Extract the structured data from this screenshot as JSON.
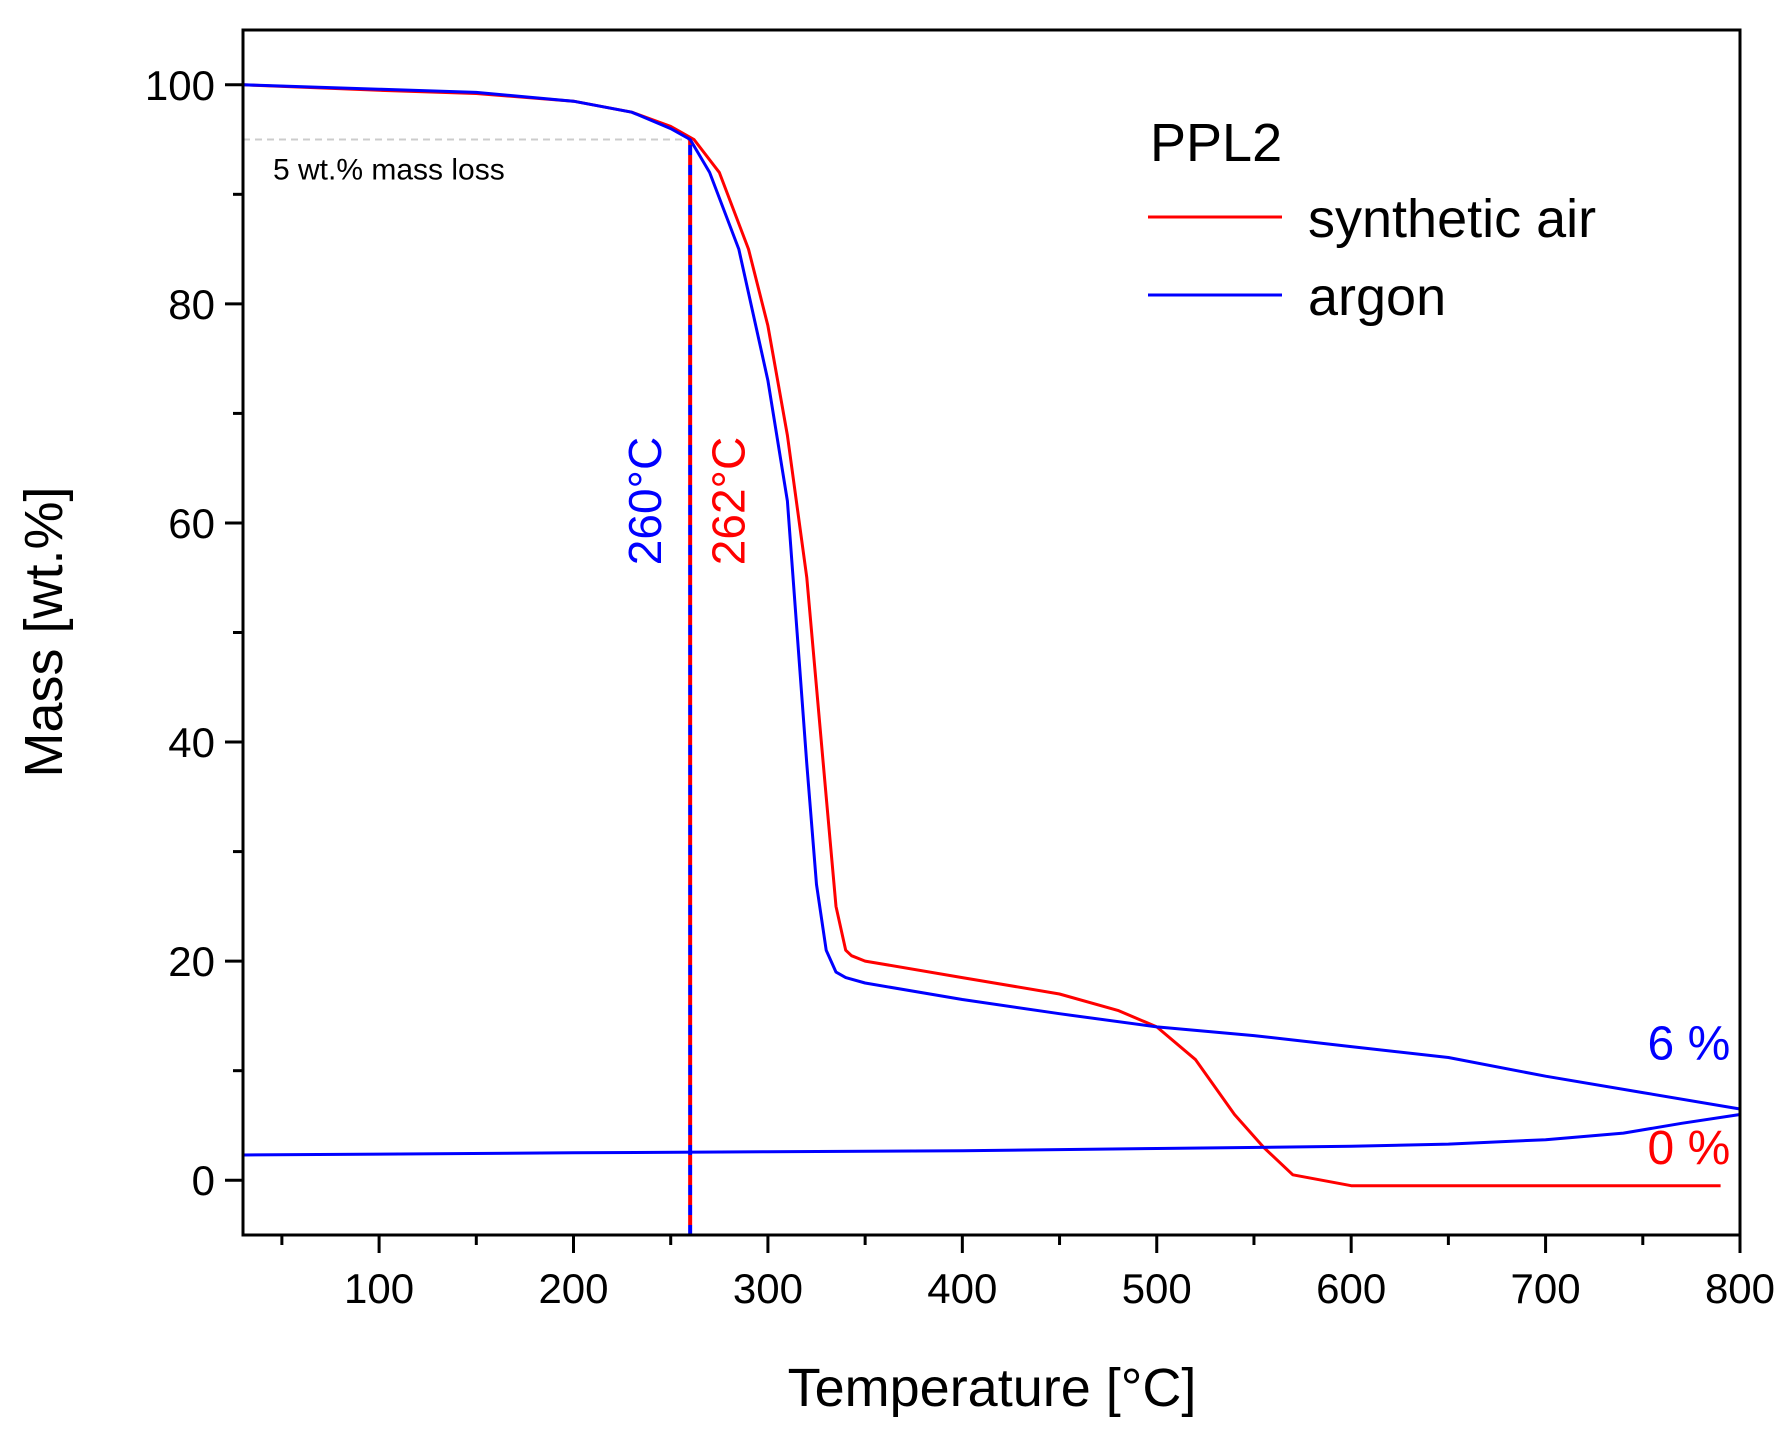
{
  "chart_data": {
    "type": "line",
    "xlabel": "Temperature [°C]",
    "ylabel": "Mass [wt.%]",
    "xlim": [
      30,
      800
    ],
    "ylim": [
      -5,
      105
    ],
    "xticks": [
      100,
      200,
      300,
      400,
      500,
      600,
      700,
      800
    ],
    "yticks": [
      0,
      20,
      40,
      60,
      80,
      100
    ],
    "xtick_labels": [
      "100",
      "200",
      "300",
      "400",
      "500",
      "600",
      "700",
      "800"
    ],
    "ytick_labels": [
      "0",
      "20",
      "40",
      "60",
      "80",
      "100"
    ],
    "legend": {
      "title": "PPL2",
      "position": "top-right",
      "entries": [
        "synthetic air",
        "argon"
      ]
    },
    "colors": {
      "synthetic_air": "#ff0000",
      "argon": "#0000ff",
      "reference": "#cccccc"
    },
    "series": [
      {
        "name": "synthetic air",
        "color": "#ff0000",
        "x": [
          30,
          100,
          150,
          200,
          230,
          250,
          262,
          275,
          290,
          300,
          310,
          320,
          325,
          330,
          335,
          340,
          343,
          350,
          400,
          450,
          480,
          500,
          520,
          540,
          555,
          570,
          600,
          640,
          700,
          790
        ],
        "y": [
          100,
          99.5,
          99.2,
          98.5,
          97.5,
          96.2,
          95,
          92,
          85,
          78,
          68,
          55,
          45,
          35,
          25,
          21,
          20.5,
          20,
          18.5,
          17,
          15.5,
          14,
          11,
          6,
          3,
          0.5,
          -0.5,
          -0.5,
          -0.5,
          -0.5
        ]
      },
      {
        "name": "argon",
        "color": "#0000ff",
        "x": [
          30,
          100,
          150,
          200,
          230,
          250,
          260,
          270,
          285,
          300,
          310,
          315,
          320,
          325,
          330,
          335,
          340,
          350,
          400,
          450,
          500,
          550,
          600,
          650,
          700,
          750,
          800
        ],
        "y": [
          100,
          99.6,
          99.3,
          98.5,
          97.5,
          96,
          95,
          92,
          85,
          73,
          62,
          50,
          38,
          27,
          21,
          19,
          18.5,
          18,
          16.5,
          15.2,
          14,
          13.2,
          12.2,
          11.2,
          9.5,
          8,
          6.5
        ]
      },
      {
        "name": "argon baseline",
        "color": "#0000ff",
        "x": [
          30,
          200,
          300,
          400,
          500,
          600,
          650,
          700,
          740,
          770,
          800
        ],
        "y": [
          2.3,
          2.5,
          2.6,
          2.7,
          2.9,
          3.1,
          3.3,
          3.7,
          4.3,
          5.2,
          6
        ]
      }
    ],
    "reference_lines": [
      {
        "type": "horizontal",
        "y": 95,
        "x_from": 30,
        "x_to": 260,
        "label": "5 wt.% mass loss"
      },
      {
        "type": "vertical",
        "x": 260,
        "y_from": -5,
        "y_to": 95,
        "colors": [
          "#0000ff",
          "#ff0000"
        ]
      }
    ],
    "annotations": [
      {
        "text": "260°C",
        "color": "#0000ff",
        "x": 245,
        "y": 62,
        "rotation": -90
      },
      {
        "text": "262°C",
        "color": "#ff0000",
        "x": 288,
        "y": 62,
        "rotation": -90
      },
      {
        "text": "6 %",
        "color": "#0000ff",
        "x": 795,
        "y": 11
      },
      {
        "text": "0 %",
        "color": "#ff0000",
        "x": 795,
        "y": 1.5
      }
    ]
  }
}
